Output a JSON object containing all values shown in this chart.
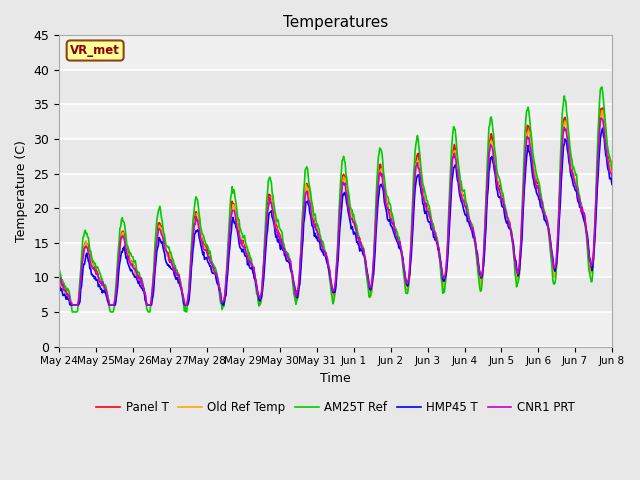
{
  "title": "Temperatures",
  "xlabel": "Time",
  "ylabel": "Temperature (C)",
  "ylim": [
    0,
    45
  ],
  "annotation": "VR_met",
  "background_color": "#e8e8e8",
  "band_color": "#f0f0f0",
  "legend": [
    "Panel T",
    "Old Ref Temp",
    "AM25T Ref",
    "HMP45 T",
    "CNR1 PRT"
  ],
  "line_colors": [
    "#ff0000",
    "#ffa500",
    "#00cc00",
    "#0000ff",
    "#cc00cc"
  ],
  "line_widths": [
    1.2,
    1.2,
    1.2,
    1.2,
    1.2
  ],
  "tick_labels": [
    "May 24",
    "May 25",
    "May 26",
    "May 27",
    "May 28",
    "May 29",
    "May 30",
    "May 31",
    "Jun 1",
    "Jun 2",
    "Jun 3",
    "Jun 4",
    "Jun 5",
    "Jun 6",
    "Jun 7",
    "Jun 8"
  ],
  "yticks": [
    0,
    5,
    10,
    15,
    20,
    25,
    30,
    35,
    40,
    45
  ],
  "fontsize": 9,
  "title_fontsize": 11
}
